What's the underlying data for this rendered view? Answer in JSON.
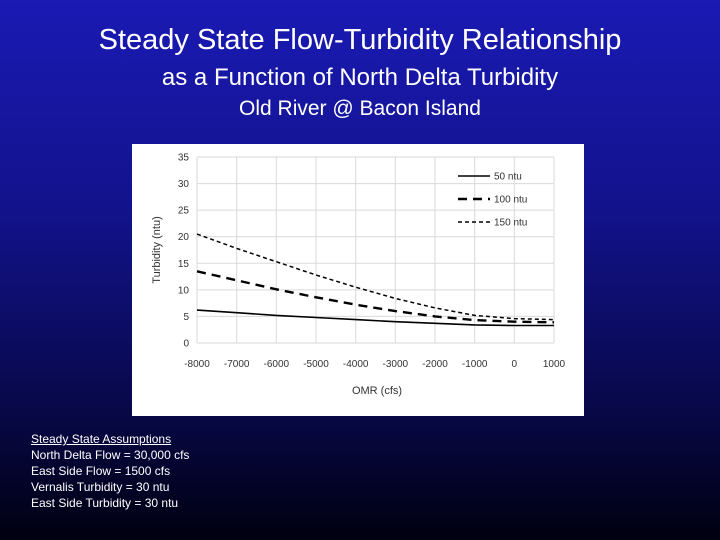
{
  "slide": {
    "title": "Steady State Flow-Turbidity Relationship",
    "subtitle": "as a Function of North Delta Turbidity",
    "location": "Old River @ Bacon Island"
  },
  "assumptions": {
    "heading": "Steady State Assumptions",
    "lines": [
      "North Delta Flow = 30,000 cfs",
      "East Side Flow = 1500 cfs",
      "Vernalis Turbidity = 30 ntu",
      "East Side Turbidity = 30 ntu"
    ]
  },
  "chart_data": {
    "type": "line",
    "title": "",
    "xlabel": "OMR (cfs)",
    "ylabel": "Turbidity (ntu)",
    "xlim": [
      -8000,
      1000
    ],
    "ylim": [
      0,
      35
    ],
    "xticks": [
      "-8000",
      "-7000",
      "-6000",
      "-5000",
      "-4000",
      "-3000",
      "-2000",
      "-1000",
      "0",
      "1000"
    ],
    "yticks": [
      "0",
      "5",
      "10",
      "15",
      "20",
      "25",
      "30",
      "35"
    ],
    "grid": true,
    "legend": "top-right",
    "x": [
      -8000,
      -7000,
      -6000,
      -5000,
      -4000,
      -3000,
      -2000,
      -1000,
      0,
      1000
    ],
    "series": [
      {
        "name": "50 ntu",
        "style": "solid",
        "values": [
          6.2,
          5.7,
          5.2,
          4.8,
          4.4,
          4.0,
          3.7,
          3.4,
          3.3,
          3.3
        ]
      },
      {
        "name": "100 ntu",
        "style": "dashed",
        "values": [
          13.5,
          11.8,
          10.1,
          8.6,
          7.2,
          6.0,
          5.0,
          4.3,
          4.0,
          3.9
        ]
      },
      {
        "name": "150 ntu",
        "style": "dotted",
        "values": [
          20.5,
          17.8,
          15.3,
          12.8,
          10.5,
          8.4,
          6.6,
          5.2,
          4.6,
          4.4
        ]
      }
    ],
    "line_color": "#000000"
  }
}
